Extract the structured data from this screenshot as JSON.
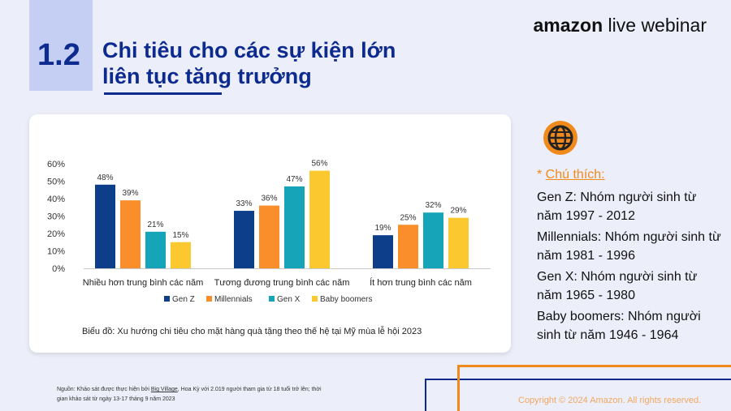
{
  "header": {
    "number": "1.2",
    "title_line1": "Chi tiêu cho các sự kiện lớn",
    "title_line2": "liên tục tăng trưởng",
    "brand_bold": "amazon",
    "brand_rest": " live webinar"
  },
  "chart_data": {
    "type": "bar",
    "categories": [
      "Nhiều hơn trung bình các năm",
      "Tương đương trung bình các năm",
      "Ít hơn trung bình các năm"
    ],
    "series": [
      {
        "name": "Gen Z",
        "values": [
          48,
          33,
          19
        ],
        "color": "#0D3E8A"
      },
      {
        "name": "Millennials",
        "values": [
          39,
          36,
          25
        ],
        "color": "#F98E2B"
      },
      {
        "name": "Gen X",
        "values": [
          21,
          47,
          32
        ],
        "color": "#16A5B8"
      },
      {
        "name": "Baby boomers",
        "values": [
          15,
          56,
          29
        ],
        "color": "#FCC82F"
      }
    ],
    "ylim": [
      0,
      60
    ],
    "yticks": [
      "0%",
      "10%",
      "20%",
      "30%",
      "40%",
      "50%",
      "60%"
    ],
    "value_suffix": "%",
    "legend": "bottom",
    "grid": false
  },
  "caption": "Biểu đồ: Xu hướng chi tiêu cho mặt hàng quà tặng theo thế hệ tại Mỹ mùa lễ hội 2023",
  "legend_panel": {
    "star": "* ",
    "heading": "Chú thích:",
    "notes": [
      "Gen Z: Nhóm người sinh từ năm 1997 - 2012",
      "Millennials: Nhóm người sinh từ năm 1981 - 1996",
      "Gen X: Nhóm người sinh từ năm 1965 - 1980",
      "Baby boomers: Nhóm người sinh từ năm 1946 - 1964"
    ],
    "icon": "globe-icon",
    "icon_color": "#F08A1C"
  },
  "source": {
    "prefix": "Nguồn: Khảo sát được thực hiện bởi ",
    "link": "Big Village",
    "rest": ", Hoa Kỳ với 2.019 người tham gia từ 18 tuổi trở lên; thời gian khảo sát từ ngày 13-17 tháng 9 năm 2023"
  },
  "copyright": "Copyright © 2024 Amazon. All rights reserved."
}
